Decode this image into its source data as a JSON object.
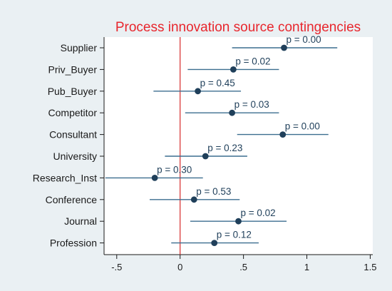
{
  "chart_data": {
    "type": "scatter",
    "subtype": "coefficient-plot",
    "title": "Process innovation source contingencies",
    "xlabel": "",
    "ylabel": "",
    "xlim": [
      -0.6,
      1.52
    ],
    "xticks": [
      -0.5,
      0,
      0.5,
      1,
      1.5
    ],
    "xtick_labels": [
      "-.5",
      "0",
      ".5",
      "1",
      "1.5"
    ],
    "reference_line_x": 0,
    "grid": false,
    "legend": "none",
    "categories": [
      "Supplier",
      "Priv_Buyer",
      "Pub_Buyer",
      "Competitor",
      "Consultant",
      "University",
      "Research_Inst",
      "Conference",
      "Journal",
      "Profession"
    ],
    "estimates": [
      0.82,
      0.42,
      0.14,
      0.41,
      0.81,
      0.2,
      -0.2,
      0.11,
      0.46,
      0.27
    ],
    "ci_low": [
      0.41,
      0.06,
      -0.21,
      0.04,
      0.45,
      -0.12,
      -0.59,
      -0.24,
      0.08,
      -0.07
    ],
    "ci_high": [
      1.24,
      0.78,
      0.48,
      0.78,
      1.17,
      0.53,
      0.18,
      0.47,
      0.84,
      0.62
    ],
    "p_labels": [
      "p = 0.00",
      "p = 0.02",
      "p = 0.45",
      "p = 0.03",
      "p = 0.00",
      "p = 0.23",
      "p = 0.30",
      "p = 0.53",
      "p = 0.02",
      "p = 0.12"
    ],
    "colors": {
      "title": "#e8262d",
      "reference_line": "#d62a2a",
      "ci_line": "#3c6e8f",
      "marker": "#1f3f5a",
      "plot_background": "#ffffff",
      "outer_background": "#eaf0f3",
      "axis": "#1a1a1a"
    }
  }
}
